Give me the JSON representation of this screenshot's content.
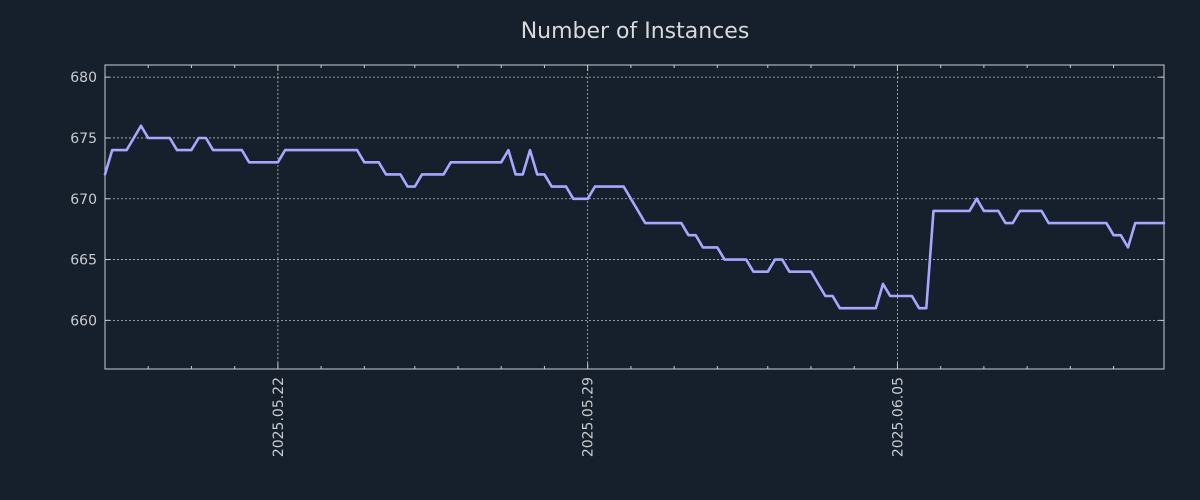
{
  "chart_data": {
    "type": "line",
    "title": "Number of Instances",
    "xlabel": "",
    "ylabel": "",
    "ylim": [
      656,
      681
    ],
    "yticks": [
      660,
      665,
      670,
      675,
      680
    ],
    "xlim": [
      0,
      147
    ],
    "xticks": [
      {
        "x": 24,
        "label": "2025.05.22"
      },
      {
        "x": 67,
        "label": "2025.05.29"
      },
      {
        "x": 110,
        "label": "2025.06.05"
      }
    ],
    "x_minor_ticks": [
      6,
      12,
      18,
      30,
      36,
      43,
      49,
      55,
      61,
      73,
      79,
      85,
      92,
      98,
      104,
      116,
      122,
      128,
      134,
      140
    ],
    "grid": true,
    "line_color": "#a6a8ff",
    "series": [
      {
        "name": "Instances",
        "x": [
          0,
          1,
          2,
          3,
          4,
          5,
          6,
          7,
          8,
          9,
          10,
          11,
          12,
          13,
          14,
          15,
          16,
          17,
          18,
          19,
          20,
          21,
          22,
          23,
          24,
          25,
          26,
          27,
          28,
          29,
          30,
          31,
          32,
          33,
          34,
          35,
          36,
          37,
          38,
          39,
          40,
          41,
          42,
          43,
          44,
          45,
          46,
          47,
          48,
          49,
          50,
          51,
          52,
          53,
          54,
          55,
          56,
          57,
          58,
          59,
          60,
          61,
          62,
          63,
          64,
          65,
          66,
          67,
          68,
          69,
          70,
          71,
          72,
          73,
          74,
          75,
          76,
          77,
          78,
          79,
          80,
          81,
          82,
          83,
          84,
          85,
          86,
          87,
          88,
          89,
          90,
          91,
          92,
          93,
          94,
          95,
          96,
          97,
          98,
          99,
          100,
          101,
          102,
          103,
          104,
          105,
          106,
          107,
          108,
          109,
          110,
          111,
          112,
          113,
          114,
          115,
          116,
          117,
          118,
          119,
          120,
          121,
          122,
          123,
          124,
          125,
          126,
          127,
          128,
          129,
          130,
          131,
          132,
          133,
          134,
          135,
          136,
          137,
          138,
          139,
          140,
          141,
          142,
          143,
          144,
          145,
          146,
          147
        ],
        "values": [
          672,
          674,
          674,
          674,
          675,
          676,
          675,
          675,
          675,
          675,
          674,
          674,
          674,
          675,
          675,
          674,
          674,
          674,
          674,
          674,
          673,
          673,
          673,
          673,
          673,
          674,
          674,
          674,
          674,
          674,
          674,
          674,
          674,
          674,
          674,
          674,
          673,
          673,
          673,
          672,
          672,
          672,
          671,
          671,
          672,
          672,
          672,
          672,
          673,
          673,
          673,
          673,
          673,
          673,
          673,
          673,
          674,
          672,
          672,
          674,
          672,
          672,
          671,
          671,
          671,
          670,
          670,
          670,
          671,
          671,
          671,
          671,
          671,
          670,
          669,
          668,
          668,
          668,
          668,
          668,
          668,
          667,
          667,
          666,
          666,
          666,
          665,
          665,
          665,
          665,
          664,
          664,
          664,
          665,
          665,
          664,
          664,
          664,
          664,
          663,
          662,
          662,
          661,
          661,
          661,
          661,
          661,
          661,
          663,
          662,
          662,
          662,
          662,
          661,
          661,
          669,
          669,
          669,
          669,
          669,
          669,
          670,
          669,
          669,
          669,
          668,
          668,
          669,
          669,
          669,
          669,
          668,
          668,
          668,
          668,
          668,
          668,
          668,
          668,
          668,
          667,
          667,
          666,
          668,
          668,
          668,
          668,
          668
        ]
      }
    ]
  }
}
